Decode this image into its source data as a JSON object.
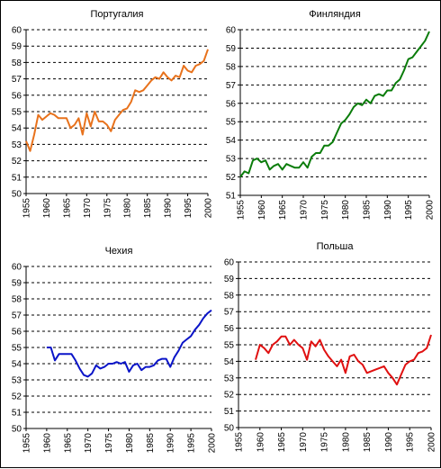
{
  "chart_data": [
    {
      "type": "line",
      "title": "Португалия",
      "color": "#E8721C",
      "xlim": [
        1955,
        2000
      ],
      "ylim": [
        50,
        60
      ],
      "x_ticks": [
        1955,
        1960,
        1965,
        1970,
        1975,
        1980,
        1985,
        1990,
        1995,
        2000
      ],
      "y_ticks": [
        50,
        51,
        52,
        53,
        54,
        55,
        56,
        57,
        58,
        59,
        60
      ],
      "grid": "horizontal-dashed",
      "x": [
        1955,
        1956,
        1957,
        1958,
        1959,
        1960,
        1961,
        1962,
        1963,
        1964,
        1965,
        1966,
        1967,
        1968,
        1969,
        1970,
        1971,
        1972,
        1973,
        1974,
        1975,
        1976,
        1977,
        1978,
        1979,
        1980,
        1981,
        1982,
        1983,
        1984,
        1985,
        1986,
        1987,
        1988,
        1989,
        1990,
        1991,
        1992,
        1993,
        1994,
        1995,
        1996,
        1997,
        1998,
        1999,
        2000
      ],
      "y": [
        53.2,
        52.6,
        53.6,
        54.8,
        54.5,
        54.7,
        54.9,
        54.8,
        54.6,
        54.6,
        54.6,
        54.0,
        54.2,
        54.6,
        53.6,
        54.9,
        54.1,
        55.0,
        54.4,
        54.4,
        54.2,
        53.8,
        54.5,
        54.8,
        55.1,
        55.2,
        55.6,
        56.3,
        56.2,
        56.3,
        56.6,
        56.9,
        57.1,
        57.0,
        57.4,
        57.1,
        56.9,
        57.2,
        57.1,
        57.8,
        57.5,
        57.4,
        57.8,
        57.9,
        58.1,
        58.8
      ]
    },
    {
      "type": "line",
      "title": "Финляндия",
      "color": "#0A7C0A",
      "xlim": [
        1955,
        2000
      ],
      "ylim": [
        51,
        60
      ],
      "x_ticks": [
        1955,
        1960,
        1965,
        1970,
        1975,
        1980,
        1985,
        1990,
        1995,
        2000
      ],
      "y_ticks": [
        51,
        52,
        53,
        54,
        55,
        56,
        57,
        58,
        59,
        60
      ],
      "grid": "horizontal-dashed",
      "x": [
        1955,
        1956,
        1957,
        1958,
        1959,
        1960,
        1961,
        1962,
        1963,
        1964,
        1965,
        1966,
        1967,
        1968,
        1969,
        1970,
        1971,
        1972,
        1973,
        1974,
        1975,
        1976,
        1977,
        1978,
        1979,
        1980,
        1981,
        1982,
        1983,
        1984,
        1985,
        1986,
        1987,
        1988,
        1989,
        1990,
        1991,
        1992,
        1993,
        1994,
        1995,
        1996,
        1997,
        1998,
        1999,
        2000
      ],
      "y": [
        52.0,
        52.3,
        52.2,
        52.9,
        53.0,
        52.8,
        52.9,
        52.4,
        52.6,
        52.7,
        52.4,
        52.7,
        52.6,
        52.5,
        52.5,
        52.8,
        52.5,
        53.1,
        53.3,
        53.3,
        53.7,
        53.7,
        53.9,
        54.4,
        54.9,
        55.1,
        55.4,
        55.8,
        56.0,
        55.9,
        56.2,
        56.0,
        56.4,
        56.5,
        56.4,
        56.7,
        56.7,
        57.1,
        57.3,
        57.8,
        58.4,
        58.5,
        58.8,
        59.1,
        59.4,
        59.9
      ]
    },
    {
      "type": "line",
      "title": "Чехия",
      "color": "#0A14C8",
      "xlim": [
        1955,
        2000
      ],
      "ylim": [
        50,
        60
      ],
      "x_ticks": [
        1955,
        1960,
        1965,
        1970,
        1975,
        1980,
        1985,
        1990,
        1995,
        2000
      ],
      "y_ticks": [
        50,
        51,
        52,
        53,
        54,
        55,
        56,
        57,
        58,
        59,
        60
      ],
      "grid": "horizontal-dashed",
      "x": [
        1960,
        1961,
        1962,
        1963,
        1964,
        1965,
        1966,
        1967,
        1968,
        1969,
        1970,
        1971,
        1972,
        1973,
        1974,
        1975,
        1976,
        1977,
        1978,
        1979,
        1980,
        1981,
        1982,
        1983,
        1984,
        1985,
        1986,
        1987,
        1988,
        1989,
        1990,
        1991,
        1992,
        1993,
        1994,
        1995,
        1996,
        1997,
        1998,
        1999,
        2000
      ],
      "y": [
        55.0,
        55.0,
        54.2,
        54.6,
        54.6,
        54.6,
        54.6,
        54.2,
        53.7,
        53.3,
        53.2,
        53.4,
        53.9,
        53.7,
        53.8,
        54.0,
        54.0,
        54.1,
        54.0,
        54.1,
        53.5,
        53.9,
        54.0,
        53.6,
        53.8,
        53.8,
        53.9,
        54.2,
        54.3,
        54.3,
        53.8,
        54.4,
        54.8,
        55.3,
        55.5,
        55.7,
        56.1,
        56.4,
        56.8,
        57.1,
        57.3
      ]
    },
    {
      "type": "line",
      "title": "Польша",
      "color": "#E01010",
      "xlim": [
        1955,
        2000
      ],
      "ylim": [
        50,
        60
      ],
      "x_ticks": [
        1955,
        1960,
        1965,
        1970,
        1975,
        1980,
        1985,
        1990,
        1995,
        2000
      ],
      "y_ticks": [
        50,
        51,
        52,
        53,
        54,
        55,
        56,
        57,
        58,
        59,
        60
      ],
      "grid": "horizontal-dashed",
      "x": [
        1959,
        1960,
        1961,
        1962,
        1963,
        1964,
        1965,
        1966,
        1967,
        1968,
        1969,
        1970,
        1971,
        1972,
        1973,
        1974,
        1975,
        1976,
        1977,
        1978,
        1979,
        1980,
        1981,
        1982,
        1983,
        1984,
        1985,
        1986,
        1987,
        1988,
        1989,
        1990,
        1991,
        1992,
        1993,
        1994,
        1995,
        1996,
        1997,
        1998,
        1999,
        2000
      ],
      "y": [
        54.1,
        55.0,
        54.8,
        54.5,
        55.0,
        55.2,
        55.5,
        55.5,
        55.0,
        55.3,
        55.0,
        54.8,
        54.1,
        55.2,
        54.9,
        55.3,
        54.7,
        54.3,
        54.0,
        53.7,
        54.1,
        53.3,
        54.3,
        54.4,
        54.0,
        53.8,
        53.3,
        53.4,
        53.5,
        53.6,
        53.7,
        53.3,
        53.0,
        52.6,
        53.2,
        53.8,
        54.0,
        54.1,
        54.5,
        54.6,
        54.8,
        55.6
      ]
    }
  ]
}
